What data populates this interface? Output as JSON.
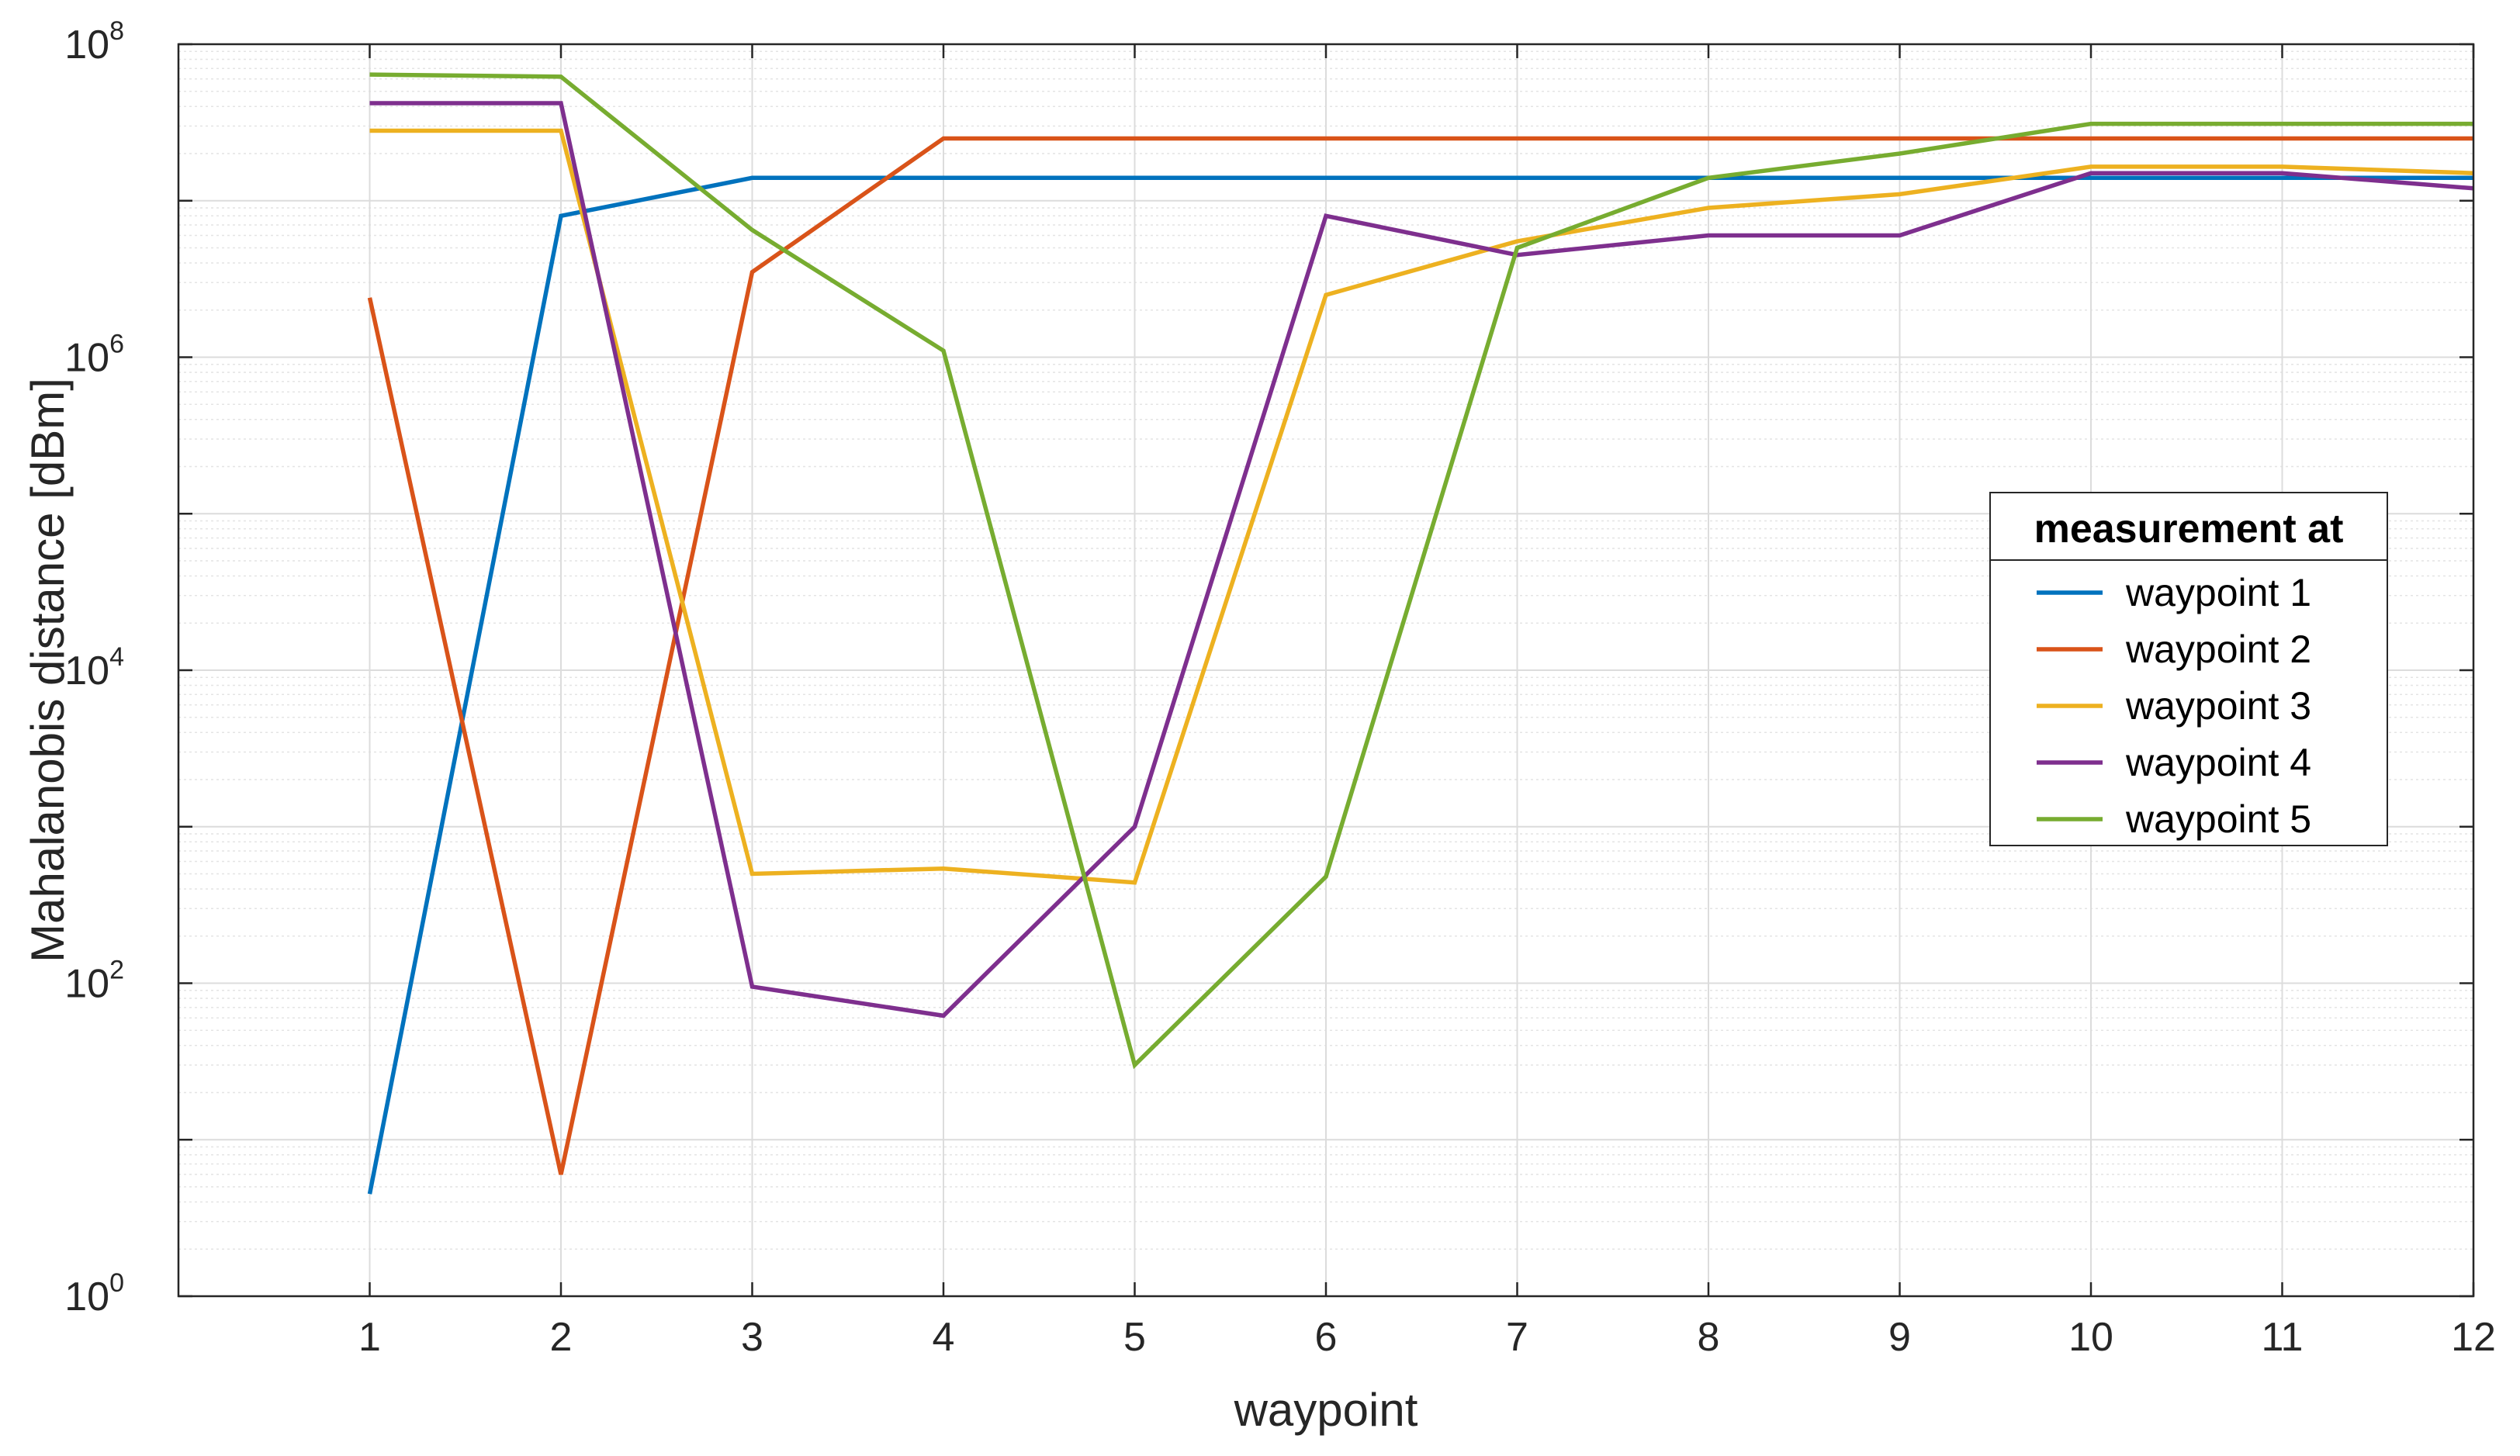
{
  "chart_data": {
    "type": "line",
    "xlabel": "waypoint",
    "ylabel": "Mahalanobis distance [dBm]",
    "x": [
      1,
      2,
      3,
      4,
      5,
      6,
      7,
      8,
      9,
      10,
      11,
      12
    ],
    "xlim": [
      0,
      12
    ],
    "xticks": [
      "1",
      "2",
      "3",
      "4",
      "5",
      "6",
      "7",
      "8",
      "9",
      "10",
      "11",
      "12"
    ],
    "yscale": "log",
    "ylim": [
      1,
      100000000
    ],
    "yticks": [
      {
        "base": "10",
        "exp": "0",
        "value": 1
      },
      {
        "base": "10",
        "exp": "2",
        "value": 100
      },
      {
        "base": "10",
        "exp": "4",
        "value": 10000
      },
      {
        "base": "10",
        "exp": "6",
        "value": 1000000
      },
      {
        "base": "10",
        "exp": "8",
        "value": 100000000
      }
    ],
    "grid": true,
    "legend": {
      "title": "measurement at",
      "placement": "right"
    },
    "series": [
      {
        "name": "waypoint 1",
        "color": "#0072BD",
        "values": [
          4.5,
          8000000,
          14000000,
          14000000,
          14000000,
          14000000,
          14000000,
          14000000,
          14000000,
          14000000,
          14000000,
          14000000
        ]
      },
      {
        "name": "waypoint 2",
        "color": "#D95319",
        "values": [
          2400000,
          6,
          3500000,
          25000000,
          25000000,
          25000000,
          25000000,
          25000000,
          25000000,
          25000000,
          25000000,
          25000000
        ]
      },
      {
        "name": "waypoint 3",
        "color": "#EDB120",
        "values": [
          28000000,
          28000000,
          500,
          540,
          440,
          2500000,
          5500000,
          9000000,
          11000000,
          16500000,
          16500000,
          15000000
        ]
      },
      {
        "name": "waypoint 4",
        "color": "#7E2F8E",
        "values": [
          42000000,
          42000000,
          95,
          62,
          1000,
          8000000,
          4500000,
          6000000,
          6000000,
          15000000,
          15000000,
          12000000
        ]
      },
      {
        "name": "waypoint 5",
        "color": "#77AC30",
        "values": [
          64000000,
          62000000,
          6500000,
          1100000,
          30,
          480,
          5000000,
          14000000,
          20000000,
          31000000,
          31000000,
          31000000
        ]
      }
    ]
  }
}
